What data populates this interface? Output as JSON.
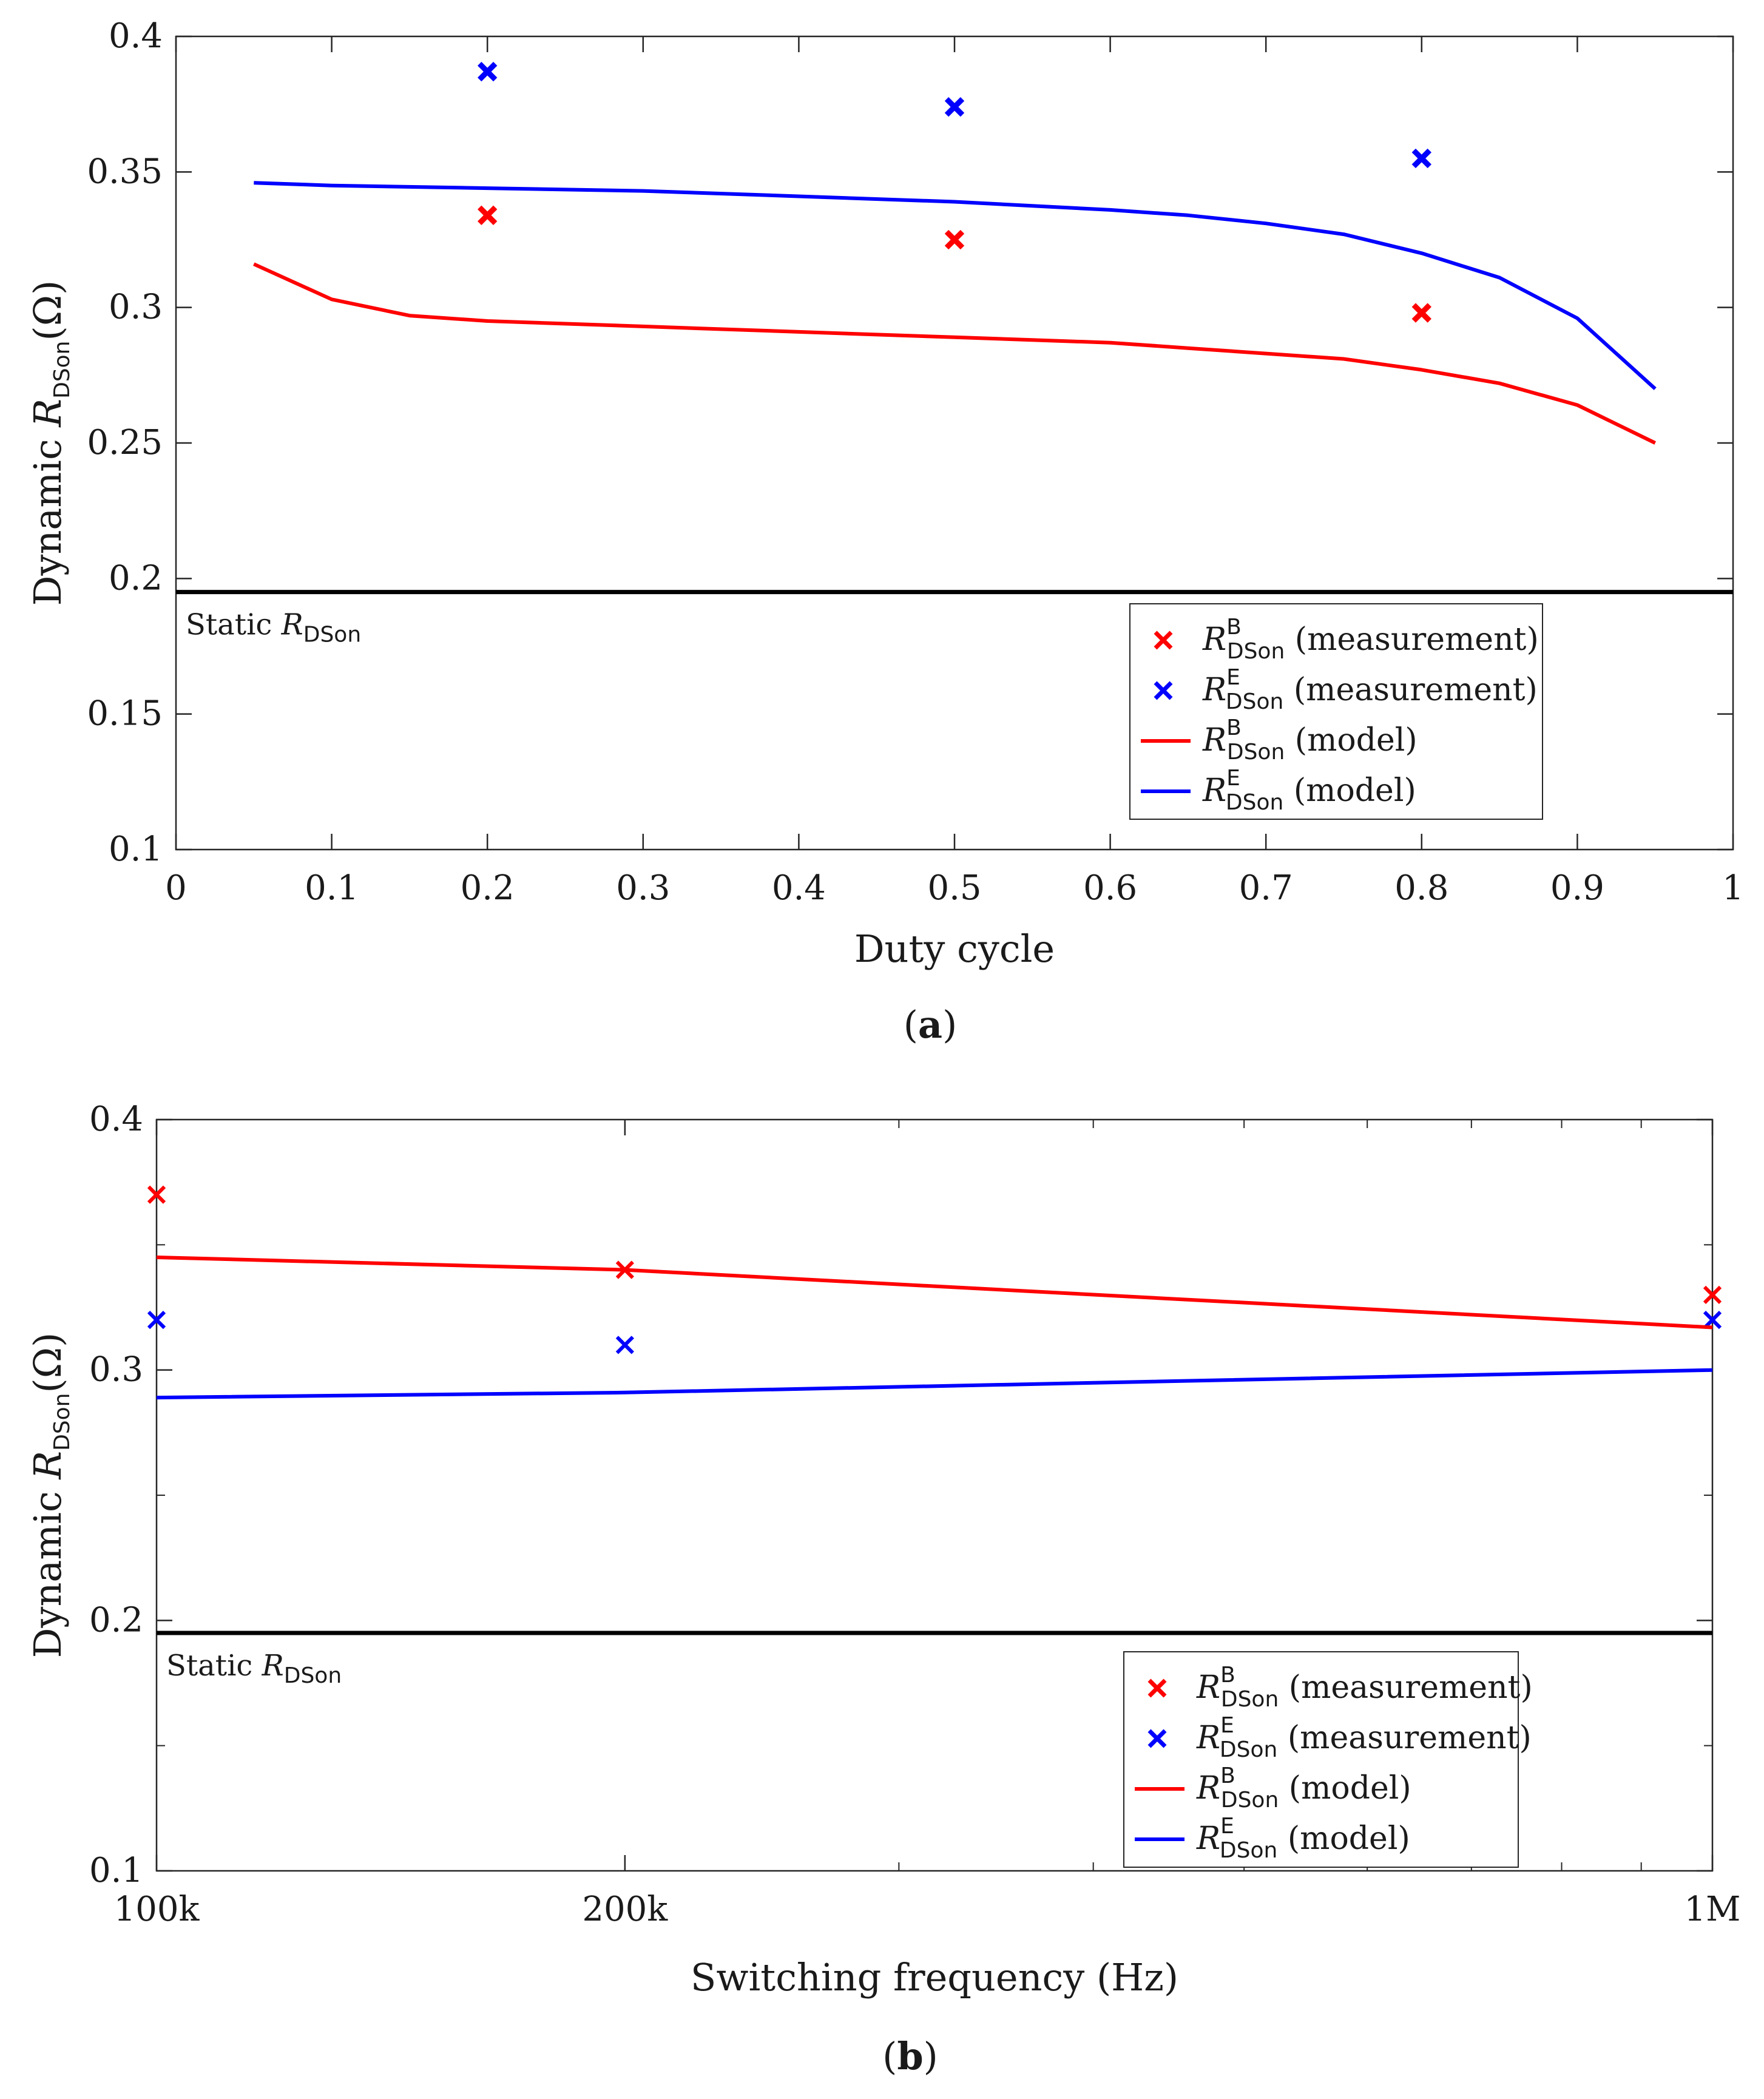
{
  "chart_data": [
    {
      "id": "a",
      "type": "line",
      "panel_label": "a",
      "xlabel": "Duty cycle",
      "ylabel": "Dynamic R_DSon(Ω)",
      "ylabel_parts": {
        "prefix": "Dynamic ",
        "symbol": "R",
        "subscript": "DSon",
        "suffix": "(Ω)"
      },
      "xscale": "linear",
      "xlim": [
        0,
        1
      ],
      "ylim": [
        0.1,
        0.4
      ],
      "xticks": [
        0,
        0.1,
        0.2,
        0.3,
        0.4,
        0.5,
        0.6,
        0.7,
        0.8,
        0.9,
        1
      ],
      "xtick_labels": [
        "0",
        "0.1",
        "0.2",
        "0.3",
        "0.4",
        "0.5",
        "0.6",
        "0.7",
        "0.8",
        "0.9",
        "1"
      ],
      "yticks": [
        0.1,
        0.15,
        0.2,
        0.25,
        0.3,
        0.35,
        0.4
      ],
      "ytick_labels": [
        "0.1",
        "0.15",
        "0.2",
        "0.25",
        "0.3",
        "0.35",
        "0.4"
      ],
      "grid": false,
      "legend_position": "bottom-right",
      "static_line": {
        "y": 0.195,
        "label_prefix": "Static ",
        "symbol": "R",
        "subscript": "DSon",
        "color": "#000000"
      },
      "series": [
        {
          "name": "R_DSon^B (measurement)",
          "symbol": "R",
          "subscript": "DSon",
          "superscript": "B",
          "suffix": "(measurement)",
          "kind": "marker",
          "color": "#ff0000",
          "x": [
            0.2,
            0.5,
            0.8
          ],
          "y": [
            0.334,
            0.325,
            0.298
          ]
        },
        {
          "name": "R_DSon^E (measurement)",
          "symbol": "R",
          "subscript": "DSon",
          "superscript": "E",
          "suffix": "(measurement)",
          "kind": "marker",
          "color": "#0000ff",
          "x": [
            0.2,
            0.5,
            0.8
          ],
          "y": [
            0.387,
            0.374,
            0.355
          ]
        },
        {
          "name": "R_DSon^B (model)",
          "symbol": "R",
          "subscript": "DSon",
          "superscript": "B",
          "suffix": "(model)",
          "kind": "line",
          "color": "#ff0000",
          "x": [
            0.05,
            0.1,
            0.15,
            0.2,
            0.3,
            0.4,
            0.5,
            0.6,
            0.65,
            0.7,
            0.75,
            0.8,
            0.85,
            0.9,
            0.95
          ],
          "y": [
            0.316,
            0.303,
            0.297,
            0.295,
            0.293,
            0.291,
            0.289,
            0.287,
            0.285,
            0.283,
            0.281,
            0.277,
            0.272,
            0.264,
            0.25
          ]
        },
        {
          "name": "R_DSon^E (model)",
          "symbol": "R",
          "subscript": "DSon",
          "superscript": "E",
          "suffix": "(model)",
          "kind": "line",
          "color": "#0000ff",
          "x": [
            0.05,
            0.1,
            0.2,
            0.3,
            0.4,
            0.5,
            0.6,
            0.65,
            0.7,
            0.75,
            0.8,
            0.85,
            0.9,
            0.95
          ],
          "y": [
            0.346,
            0.345,
            0.344,
            0.343,
            0.341,
            0.339,
            0.336,
            0.334,
            0.331,
            0.327,
            0.32,
            0.311,
            0.296,
            0.27
          ]
        }
      ]
    },
    {
      "id": "b",
      "type": "line",
      "panel_label": "b",
      "xlabel": "Switching frequency (Hz)",
      "ylabel": "Dynamic R_DSon(Ω)",
      "ylabel_parts": {
        "prefix": "Dynamic ",
        "symbol": "R",
        "subscript": "DSon",
        "suffix": "(Ω)"
      },
      "xscale": "log",
      "xlim": [
        100000,
        1000000
      ],
      "ylim": [
        0.1,
        0.4
      ],
      "xticks": [
        100000,
        200000,
        1000000
      ],
      "xtick_labels": [
        "100k",
        "200k",
        "1M"
      ],
      "xminor_ticks": [
        300000,
        400000,
        500000,
        600000,
        700000,
        800000,
        900000
      ],
      "yticks": [
        0.1,
        0.2,
        0.3,
        0.4
      ],
      "ytick_labels": [
        "0.1",
        "0.2",
        "0.3",
        "0.4"
      ],
      "yminor_ticks": [
        0.15,
        0.25,
        0.35
      ],
      "grid": false,
      "legend_position": "bottom-right",
      "static_line": {
        "y": 0.195,
        "label_prefix": "Static ",
        "symbol": "R",
        "subscript": "DSon",
        "color": "#000000"
      },
      "series": [
        {
          "name": "R_DSon^B (measurement)",
          "symbol": "R",
          "subscript": "DSon",
          "superscript": "B",
          "suffix": "(measurement)",
          "kind": "marker",
          "color": "#ff0000",
          "x": [
            100000,
            200000,
            1000000
          ],
          "y": [
            0.37,
            0.34,
            0.33
          ]
        },
        {
          "name": "R_DSon^E (measurement)",
          "symbol": "R",
          "subscript": "DSon",
          "superscript": "E",
          "suffix": "(measurement)",
          "kind": "marker",
          "color": "#0000ff",
          "x": [
            100000,
            200000,
            1000000
          ],
          "y": [
            0.32,
            0.31,
            0.32
          ]
        },
        {
          "name": "R_DSon^B (model)",
          "symbol": "R",
          "subscript": "DSon",
          "superscript": "B",
          "suffix": "(model)",
          "kind": "line",
          "color": "#ff0000",
          "x": [
            100000,
            200000,
            1000000
          ],
          "y": [
            0.345,
            0.34,
            0.317
          ]
        },
        {
          "name": "R_DSon^E (model)",
          "symbol": "R",
          "subscript": "DSon",
          "superscript": "E",
          "suffix": "(model)",
          "kind": "line",
          "color": "#0000ff",
          "x": [
            100000,
            200000,
            1000000
          ],
          "y": [
            0.289,
            0.291,
            0.3
          ]
        }
      ]
    }
  ]
}
